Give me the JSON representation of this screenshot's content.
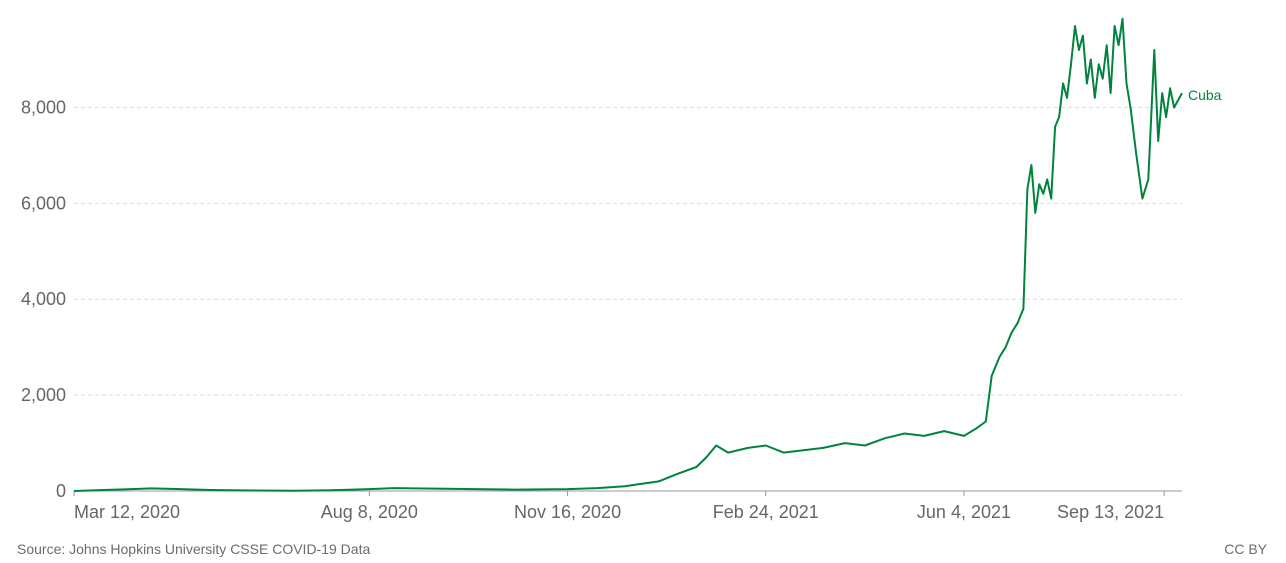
{
  "chart_data": {
    "type": "line",
    "title": "",
    "xlabel": "",
    "ylabel": "",
    "x_range": [
      "2020-03-12",
      "2021-09-22"
    ],
    "ylim": [
      0,
      9950
    ],
    "y_ticks": [
      0,
      2000,
      4000,
      6000,
      8000
    ],
    "y_tick_labels": [
      "0",
      "2,000",
      "4,000",
      "6,000",
      "8,000"
    ],
    "x_ticks": [
      "2020-03-12",
      "2020-08-08",
      "2020-11-16",
      "2021-02-24",
      "2021-06-04",
      "2021-09-13"
    ],
    "x_tick_labels": [
      "Mar 12, 2020",
      "Aug 8, 2020",
      "Nov 16, 2020",
      "Feb 24, 2021",
      "Jun 4, 2021",
      "Sep 13, 2021"
    ],
    "grid": true,
    "series": [
      {
        "name": "Cuba",
        "color": "#00843d",
        "points": [
          [
            "2020-03-12",
            0
          ],
          [
            "2020-03-27",
            20
          ],
          [
            "2020-04-10",
            40
          ],
          [
            "2020-04-20",
            55
          ],
          [
            "2020-05-05",
            40
          ],
          [
            "2020-05-20",
            20
          ],
          [
            "2020-06-10",
            10
          ],
          [
            "2020-07-01",
            5
          ],
          [
            "2020-07-20",
            15
          ],
          [
            "2020-08-08",
            40
          ],
          [
            "2020-08-20",
            60
          ],
          [
            "2020-09-10",
            50
          ],
          [
            "2020-10-01",
            40
          ],
          [
            "2020-10-20",
            30
          ],
          [
            "2020-11-16",
            40
          ],
          [
            "2020-12-01",
            60
          ],
          [
            "2020-12-15",
            100
          ],
          [
            "2021-01-01",
            200
          ],
          [
            "2021-01-10",
            350
          ],
          [
            "2021-01-20",
            500
          ],
          [
            "2021-01-25",
            700
          ],
          [
            "2021-01-30",
            950
          ],
          [
            "2021-02-05",
            800
          ],
          [
            "2021-02-15",
            900
          ],
          [
            "2021-02-24",
            950
          ],
          [
            "2021-03-05",
            800
          ],
          [
            "2021-03-15",
            850
          ],
          [
            "2021-03-25",
            900
          ],
          [
            "2021-04-05",
            1000
          ],
          [
            "2021-04-15",
            950
          ],
          [
            "2021-04-25",
            1100
          ],
          [
            "2021-05-05",
            1200
          ],
          [
            "2021-05-15",
            1150
          ],
          [
            "2021-05-25",
            1250
          ],
          [
            "2021-06-04",
            1150
          ],
          [
            "2021-06-10",
            1300
          ],
          [
            "2021-06-15",
            1450
          ],
          [
            "2021-06-18",
            2400
          ],
          [
            "2021-06-22",
            2800
          ],
          [
            "2021-06-25",
            3000
          ],
          [
            "2021-06-28",
            3300
          ],
          [
            "2021-07-01",
            3500
          ],
          [
            "2021-07-04",
            3800
          ],
          [
            "2021-07-06",
            6300
          ],
          [
            "2021-07-08",
            6800
          ],
          [
            "2021-07-10",
            5800
          ],
          [
            "2021-07-12",
            6400
          ],
          [
            "2021-07-14",
            6200
          ],
          [
            "2021-07-16",
            6500
          ],
          [
            "2021-07-18",
            6100
          ],
          [
            "2021-07-20",
            7600
          ],
          [
            "2021-07-22",
            7800
          ],
          [
            "2021-07-24",
            8500
          ],
          [
            "2021-07-26",
            8200
          ],
          [
            "2021-07-28",
            8900
          ],
          [
            "2021-07-30",
            9700
          ],
          [
            "2021-08-01",
            9200
          ],
          [
            "2021-08-03",
            9500
          ],
          [
            "2021-08-05",
            8500
          ],
          [
            "2021-08-07",
            9000
          ],
          [
            "2021-08-09",
            8200
          ],
          [
            "2021-08-11",
            8900
          ],
          [
            "2021-08-13",
            8600
          ],
          [
            "2021-08-15",
            9300
          ],
          [
            "2021-08-17",
            8300
          ],
          [
            "2021-08-19",
            9700
          ],
          [
            "2021-08-21",
            9300
          ],
          [
            "2021-08-23",
            9850
          ],
          [
            "2021-08-25",
            8500
          ],
          [
            "2021-08-27",
            8000
          ],
          [
            "2021-08-30",
            7000
          ],
          [
            "2021-09-02",
            6100
          ],
          [
            "2021-09-05",
            6500
          ],
          [
            "2021-09-08",
            9200
          ],
          [
            "2021-09-10",
            7300
          ],
          [
            "2021-09-12",
            8300
          ],
          [
            "2021-09-14",
            7800
          ],
          [
            "2021-09-16",
            8400
          ],
          [
            "2021-09-18",
            8000
          ],
          [
            "2021-09-22",
            8300
          ]
        ]
      }
    ]
  },
  "footer": {
    "source": "Source: Johns Hopkins University CSSE COVID-19 Data",
    "license": "CC BY"
  }
}
